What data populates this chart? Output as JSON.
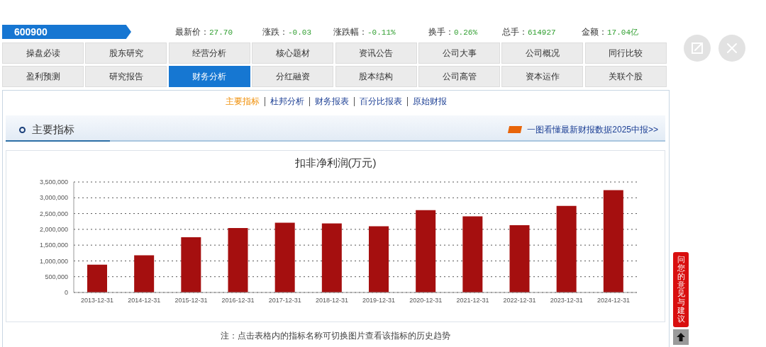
{
  "chart_data": [
    {
      "type": "other",
      "annotations": [
        "600900",
        "最新价：27.70",
        "涨跌：-0.03",
        "涨跌幅：-0.11%",
        "换手：0.26%",
        "总手：614927",
        "金额：17.04亿"
      ]
    },
    {
      "type": "other",
      "annotations": [
        "操盘必读",
        "股东研究",
        "经营分析",
        "核心题材",
        "资讯公告",
        "公司大事",
        "公司概况",
        "同行比较",
        "盈利预测",
        "研究报告",
        "财务分析",
        "分红融资",
        "股本结构",
        "公司高管",
        "资本运作",
        "关联个股"
      ]
    },
    {
      "type": "other",
      "annotations": [
        "主要指标",
        "杜邦分析",
        "财务报表",
        "百分比报表",
        "原始财报"
      ]
    },
    {
      "type": "other",
      "title": "主要指标",
      "annotations": [
        "一图看懂最新财报数据2025中报>>"
      ]
    },
    {
      "type": "bar",
      "title": "扣非净利润(万元)",
      "categories": [
        "2013-12-31",
        "2014-12-31",
        "2015-12-31",
        "2016-12-31",
        "2017-12-31",
        "2018-12-31",
        "2019-12-31",
        "2020-12-31",
        "2021-12-31",
        "2022-12-31",
        "2023-12-31",
        "2024-12-31"
      ],
      "values": [
        880000,
        1180000,
        1750000,
        2040000,
        2210000,
        2190000,
        2100000,
        2610000,
        2410000,
        2130000,
        2740000,
        3240000
      ],
      "color": "#a50f0f",
      "ylim": [
        0,
        3500000
      ],
      "yticks": [
        0,
        {
          "value": 500000,
          "label": "500,000"
        },
        {
          "value": 1000000,
          "label": "1,000,000"
        },
        {
          "value": 1500000,
          "label": "1,500,000"
        },
        {
          "value": 2000000,
          "label": "2,000,000"
        },
        {
          "value": 2500000,
          "label": "2,500,000"
        },
        {
          "value": 3000000,
          "label": "3,000,000"
        },
        {
          "value": 3500000,
          "label": "3,500,000"
        }
      ],
      "grid": "y",
      "annotations": [
        "注：点击表格内的指标名称可切换图片查看该指标的历史趋势"
      ]
    },
    {
      "type": "other",
      "annotations": [
        "问您的意见与建议"
      ]
    }
  ]
}
